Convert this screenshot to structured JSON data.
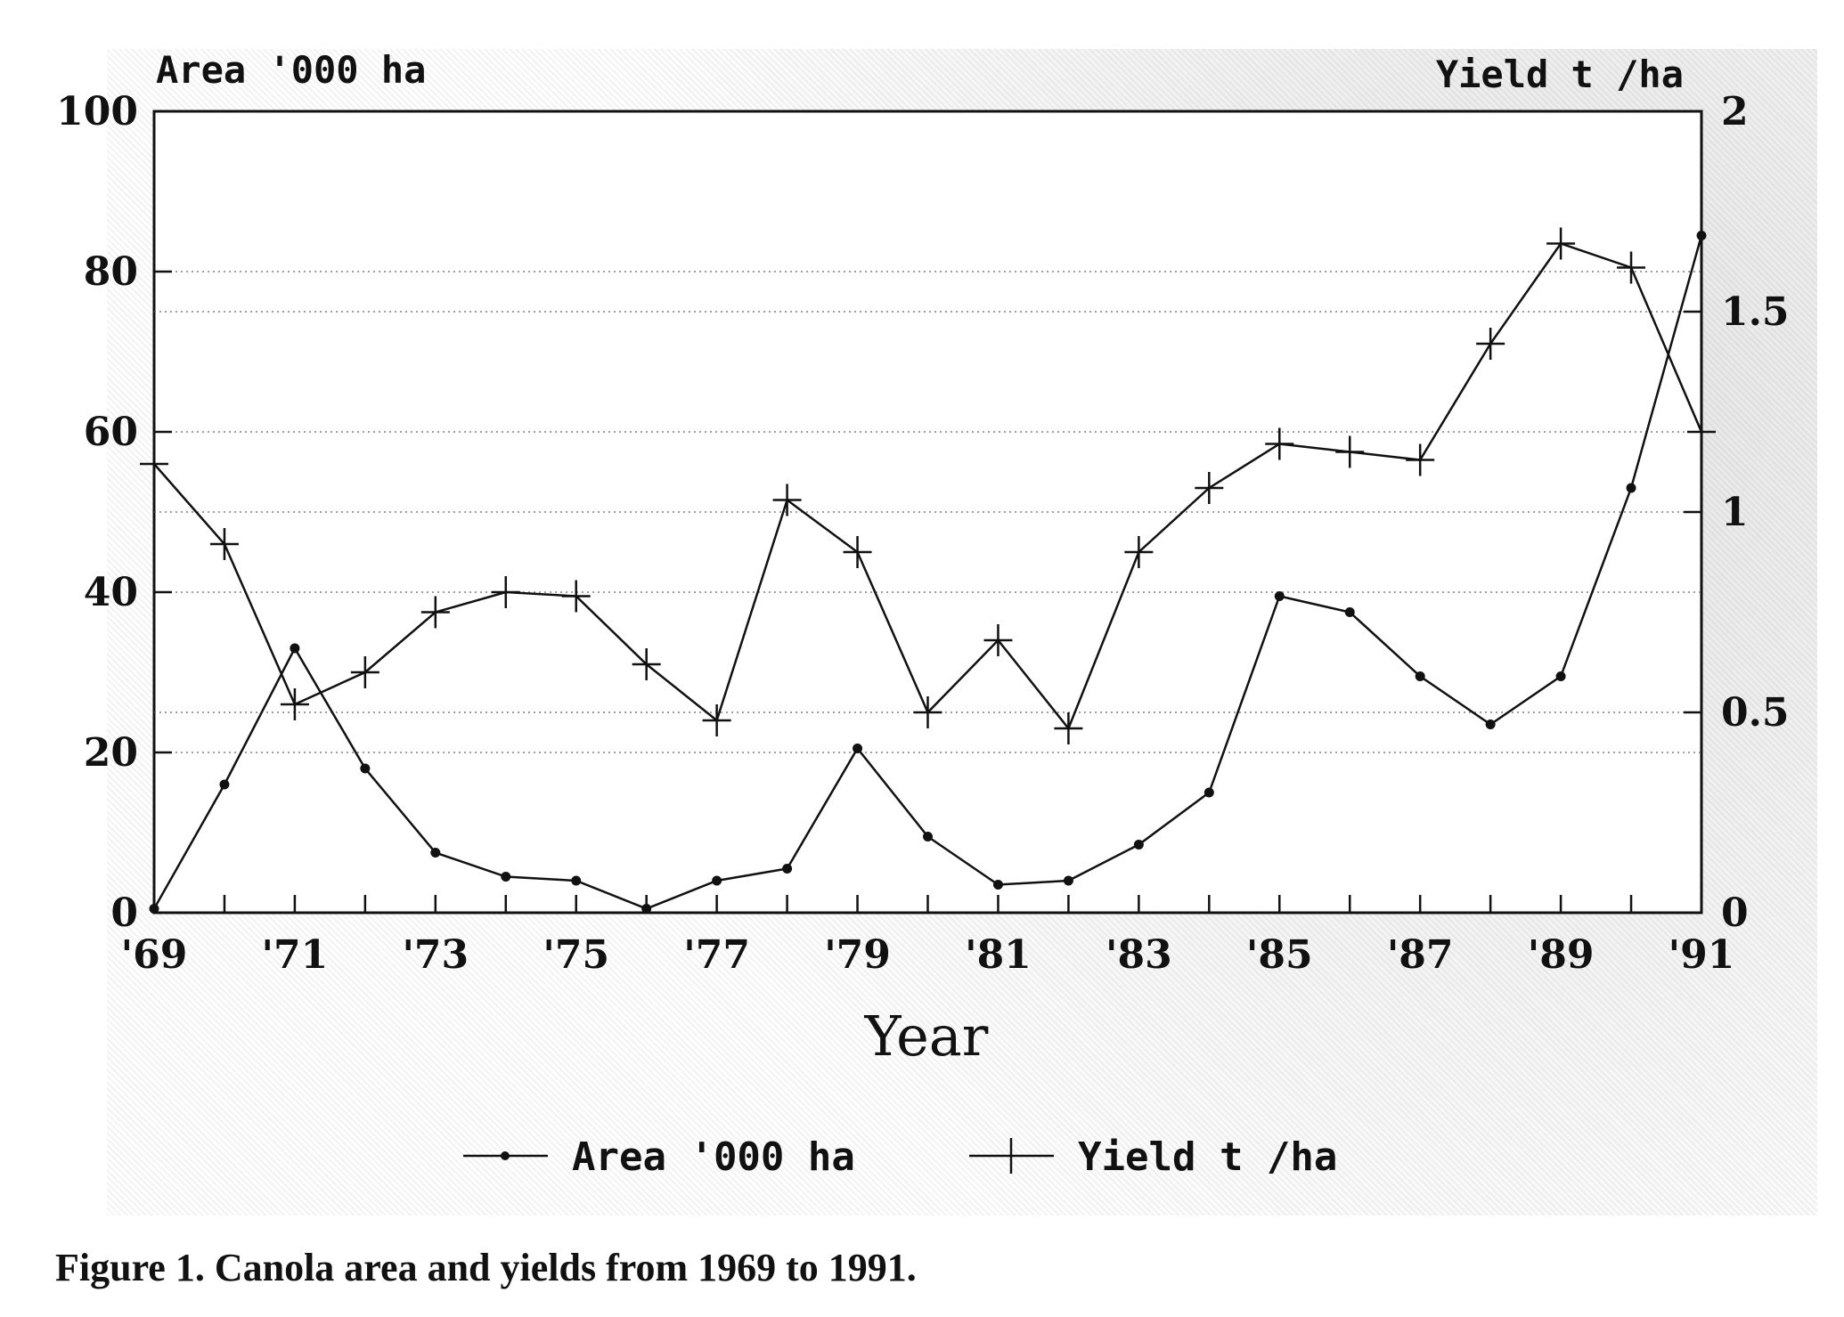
{
  "caption": "Figure 1. Canola area and yields from 1969 to 1991.",
  "chart_data": {
    "type": "line",
    "xlabel": "Year",
    "y_left_label": "Area '000 ha",
    "y_right_label": "Yield t /ha",
    "y_left_lim": [
      0,
      100
    ],
    "y_right_lim": [
      0,
      2
    ],
    "y_left_ticks": [
      "0",
      "20",
      "40",
      "60",
      "80",
      "100"
    ],
    "y_right_ticks": [
      "0",
      "0.5",
      "1",
      "1.5",
      "2"
    ],
    "x_tick_labels": [
      "'69",
      "'71",
      "'73",
      "'75",
      "'77",
      "'79",
      "'81",
      "'83",
      "'85",
      "'87",
      "'89",
      "'91"
    ],
    "x": [
      1969,
      1970,
      1971,
      1972,
      1973,
      1974,
      1975,
      1976,
      1977,
      1978,
      1979,
      1980,
      1981,
      1982,
      1983,
      1984,
      1985,
      1986,
      1987,
      1988,
      1989,
      1990,
      1991
    ],
    "grid": "horizontal dotted",
    "legend_position": "bottom-center",
    "series": [
      {
        "name": "Area '000 ha",
        "axis": "left",
        "marker": "dot",
        "values": [
          0.5,
          16,
          33,
          18,
          7.5,
          4.5,
          4,
          0.5,
          4,
          5.5,
          20.5,
          9.5,
          3.5,
          4,
          8.5,
          15,
          39.5,
          37.5,
          29.5,
          23.5,
          29.5,
          53,
          84.5
        ]
      },
      {
        "name": "Yield t /ha",
        "axis": "right",
        "marker": "plus",
        "values": [
          1.12,
          0.92,
          0.52,
          0.6,
          0.75,
          0.8,
          0.79,
          0.62,
          0.48,
          1.03,
          0.9,
          0.5,
          0.68,
          0.46,
          0.9,
          1.06,
          1.17,
          1.15,
          1.13,
          1.42,
          1.67,
          1.61,
          1.2
        ]
      }
    ]
  }
}
